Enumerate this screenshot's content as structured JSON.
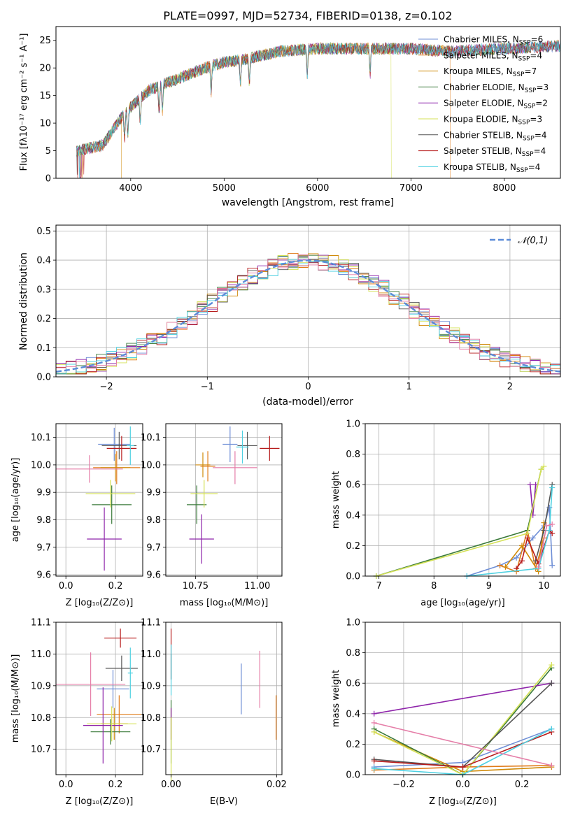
{
  "colors": [
    "#6f8fd6",
    "#e07b1a",
    "#d08a0a",
    "#3a7a3a",
    "#8e24aa",
    "#d4e157",
    "#555555",
    "#b71c1c",
    "#4dd0e1",
    "#e57ea8"
  ],
  "chart_data": [
    {
      "id": "spectrum",
      "type": "line",
      "title": "PLATE=0997, MJD=52734, FIBERID=0138, z=0.102",
      "xlabel": "wavelength [Angstrom, rest frame]",
      "ylabel": "Flux [fλ10⁻¹⁷ erg cm⁻² s⁻¹ A⁻¹]",
      "xlim": [
        3200,
        8600
      ],
      "ylim": [
        0,
        27.5
      ],
      "xticks": [
        "4000",
        "5000",
        "6000",
        "7000",
        "8000"
      ],
      "yticks": [
        "0",
        "5",
        "10",
        "15",
        "20",
        "25"
      ],
      "legend": [
        {
          "label": "Chabrier MILES, N_SSP=6",
          "color": "#6f8fd6"
        },
        {
          "label": "Salpeter MILES, N_SSP=4",
          "color": "#e07b1a"
        },
        {
          "label": "Kroupa MILES, N_SSP=7",
          "color": "#d08a0a"
        },
        {
          "label": "Chabrier ELODIE, N_SSP=3",
          "color": "#3a7a3a"
        },
        {
          "label": "Salpeter ELODIE, N_SSP=2",
          "color": "#8e24aa"
        },
        {
          "label": "Kroupa ELODIE, N_SSP=3",
          "color": "#d4e157"
        },
        {
          "label": "Chabrier STELIB, N_SSP=4",
          "color": "#555555"
        },
        {
          "label": "Salpeter STELIB, N_SSP=4",
          "color": "#b71c1c"
        },
        {
          "label": "Kroupa STELIB, N_SSP=4",
          "color": "#4dd0e1"
        }
      ],
      "legend_position": "right",
      "continuum": [
        [
          3420,
          5
        ],
        [
          3700,
          6
        ],
        [
          3900,
          11
        ],
        [
          4000,
          13
        ],
        [
          4200,
          16
        ],
        [
          4500,
          18
        ],
        [
          4800,
          20
        ],
        [
          5000,
          21
        ],
        [
          5200,
          21.5
        ],
        [
          5600,
          23
        ],
        [
          6000,
          23.5
        ],
        [
          6400,
          23.5
        ],
        [
          7000,
          23.5
        ],
        [
          7400,
          23
        ],
        [
          8000,
          23.5
        ],
        [
          8600,
          24
        ]
      ]
    },
    {
      "id": "residuals",
      "type": "step",
      "xlabel": "(data-model)/error",
      "ylabel": "Normed distribution",
      "xlim": [
        -2.5,
        2.5
      ],
      "ylim": [
        0,
        0.52
      ],
      "xticks": [
        "−2",
        "−1",
        "0",
        "1",
        "2"
      ],
      "yticks": [
        "0.0",
        "0.1",
        "0.2",
        "0.3",
        "0.4",
        "0.5"
      ],
      "legend": [
        {
          "label": "𝒩(0,1)",
          "color": "#5b8bd8"
        }
      ],
      "legend_position": "top-right",
      "grid": true
    },
    {
      "id": "age-vs-Z",
      "type": "errorbar",
      "xlabel": "Z [log₁₀(Z/Z⊙)]",
      "ylabel": "age  [log₁₀(age/yr)]",
      "xlim": [
        -0.04,
        0.31
      ],
      "ylim": [
        9.595,
        10.15
      ],
      "xticks": [
        "0.0",
        "0.2"
      ],
      "yticks": [
        "9.6",
        "9.7",
        "9.8",
        "9.9",
        "10.0",
        "10.1"
      ],
      "points": [
        {
          "x": 0.195,
          "xerr": 0.065,
          "y": 10.075,
          "yerr": 0.06,
          "color": "#6f8fd6"
        },
        {
          "x": 0.205,
          "xerr": 0.095,
          "y": 9.99,
          "yerr": 0.06,
          "color": "#e07b1a"
        },
        {
          "x": 0.2,
          "xerr": 0.06,
          "y": 9.99,
          "yerr": 0.05,
          "color": "#d08a0a"
        },
        {
          "x": 0.185,
          "xerr": 0.08,
          "y": 9.855,
          "yerr": 0.07,
          "color": "#3a7a3a"
        },
        {
          "x": 0.155,
          "xerr": 0.07,
          "y": 9.73,
          "yerr": 0.115,
          "color": "#8e24aa"
        },
        {
          "x": 0.18,
          "xerr": 0.1,
          "y": 9.895,
          "yerr": 0.05,
          "color": "#d4e157"
        },
        {
          "x": 0.215,
          "xerr": 0.07,
          "y": 10.07,
          "yerr": 0.05,
          "color": "#555555"
        },
        {
          "x": 0.225,
          "xerr": 0.06,
          "y": 10.06,
          "yerr": 0.045,
          "color": "#b71c1c"
        },
        {
          "x": 0.26,
          "xerr": 0.015,
          "y": 10.07,
          "yerr": 0.07,
          "color": "#4dd0e1"
        },
        {
          "x": 0.095,
          "xerr": 0.135,
          "y": 9.985,
          "yerr": 0.05,
          "color": "#e57ea8"
        }
      ]
    },
    {
      "id": "age-vs-mass",
      "type": "errorbar",
      "xlabel": "mass [log₁₀(M/M⊙)]",
      "ylabel": "",
      "xlim": [
        10.63,
        11.1
      ],
      "ylim": [
        9.595,
        10.15
      ],
      "xticks": [
        "10.75",
        "11.00"
      ],
      "yticks": [
        "9.6",
        "9.7",
        "9.8",
        "9.9",
        "10.0",
        "10.1"
      ],
      "points": [
        {
          "x": 10.89,
          "xerr": 0.03,
          "y": 10.075,
          "yerr": 0.065,
          "color": "#6f8fd6"
        },
        {
          "x": 10.8,
          "xerr": 0.03,
          "y": 9.995,
          "yerr": 0.055,
          "color": "#e07b1a"
        },
        {
          "x": 10.78,
          "xerr": 0.03,
          "y": 10.0,
          "yerr": 0.045,
          "color": "#d08a0a"
        },
        {
          "x": 10.755,
          "xerr": 0.04,
          "y": 9.855,
          "yerr": 0.07,
          "color": "#3a7a3a"
        },
        {
          "x": 10.775,
          "xerr": 0.05,
          "y": 9.73,
          "yerr": 0.09,
          "color": "#8e24aa"
        },
        {
          "x": 10.785,
          "xerr": 0.055,
          "y": 9.895,
          "yerr": 0.05,
          "color": "#d4e157"
        },
        {
          "x": 10.96,
          "xerr": 0.04,
          "y": 10.07,
          "yerr": 0.05,
          "color": "#555555"
        },
        {
          "x": 11.05,
          "xerr": 0.04,
          "y": 10.06,
          "yerr": 0.045,
          "color": "#b71c1c"
        },
        {
          "x": 10.94,
          "xerr": 0.025,
          "y": 10.065,
          "yerr": 0.06,
          "color": "#4dd0e1"
        },
        {
          "x": 10.91,
          "xerr": 0.09,
          "y": 9.99,
          "yerr": 0.06,
          "color": "#e57ea8"
        }
      ]
    },
    {
      "id": "weight-vs-age",
      "type": "line",
      "xlabel": "age  [log₁₀(age/yr)]",
      "ylabel": "mass weight",
      "xlim": [
        6.75,
        10.3
      ],
      "ylim": [
        0,
        1.0
      ],
      "xticks": [
        "7",
        "8",
        "9",
        "10"
      ],
      "yticks": [
        "0.0",
        "0.2",
        "0.4",
        "0.6",
        "0.8",
        "1.0"
      ],
      "series": [
        {
          "color": "#6f8fd6",
          "x": [
            8.6,
            9.2,
            9.5,
            9.8,
            10.0,
            10.1,
            10.15
          ],
          "y": [
            0.0,
            0.07,
            0.12,
            0.25,
            0.33,
            0.45,
            0.07
          ]
        },
        {
          "color": "#e07b1a",
          "x": [
            9.2,
            9.5,
            9.7,
            9.85,
            10.0
          ],
          "y": [
            0.07,
            0.03,
            0.3,
            0.05,
            0.25
          ]
        },
        {
          "color": "#d08a0a",
          "x": [
            9.3,
            9.6,
            9.9,
            10.0
          ],
          "y": [
            0.06,
            0.2,
            0.03,
            0.35
          ]
        },
        {
          "color": "#3a7a3a",
          "x": [
            6.95,
            9.7,
            9.95
          ],
          "y": [
            0.0,
            0.3,
            0.7
          ]
        },
        {
          "color": "#8e24aa",
          "x": [
            9.75,
            9.8,
            9.85
          ],
          "y": [
            0.6,
            0.4,
            0.6
          ]
        },
        {
          "color": "#d4e157",
          "x": [
            6.95,
            9.7,
            9.95,
            10.0
          ],
          "y": [
            0.0,
            0.28,
            0.7,
            0.72
          ]
        },
        {
          "color": "#555555",
          "x": [
            9.85,
            10.0,
            10.15
          ],
          "y": [
            0.1,
            0.3,
            0.6
          ]
        },
        {
          "color": "#b71c1c",
          "x": [
            9.5,
            9.6,
            9.7,
            9.9,
            10.1,
            10.15
          ],
          "y": [
            0.05,
            0.1,
            0.25,
            0.08,
            0.3,
            0.28
          ]
        },
        {
          "color": "#4dd0e1",
          "x": [
            8.6,
            9.9,
            10.1,
            10.15
          ],
          "y": [
            0.0,
            0.05,
            0.3,
            0.58
          ]
        },
        {
          "color": "#e57ea8",
          "x": [
            9.9,
            10.05,
            10.15
          ],
          "y": [
            0.06,
            0.33,
            0.34
          ]
        }
      ]
    },
    {
      "id": "mass-vs-Z",
      "type": "errorbar",
      "xlabel": "Z [log₁₀(Z/Z⊙)]",
      "ylabel": "mass [log₁₀(M/M⊙)]",
      "xlim": [
        -0.04,
        0.31
      ],
      "ylim": [
        10.62,
        11.1
      ],
      "xticks": [
        "0.0",
        "0.2"
      ],
      "yticks": [
        "10.7",
        "10.8",
        "10.9",
        "11.0",
        "11.1"
      ],
      "points": [
        {
          "x": 0.19,
          "xerr": 0.065,
          "y": 10.89,
          "yerr": 0.06,
          "color": "#6f8fd6"
        },
        {
          "x": 0.215,
          "xerr": 0.09,
          "y": 10.81,
          "yerr": 0.06,
          "color": "#e07b1a"
        },
        {
          "x": 0.195,
          "xerr": 0.055,
          "y": 10.78,
          "yerr": 0.05,
          "color": "#d08a0a"
        },
        {
          "x": 0.18,
          "xerr": 0.08,
          "y": 10.755,
          "yerr": 0.04,
          "color": "#3a7a3a"
        },
        {
          "x": 0.15,
          "xerr": 0.08,
          "y": 10.775,
          "yerr": 0.12,
          "color": "#8e24aa"
        },
        {
          "x": 0.185,
          "xerr": 0.1,
          "y": 10.78,
          "yerr": 0.055,
          "color": "#d4e157"
        },
        {
          "x": 0.225,
          "xerr": 0.065,
          "y": 10.955,
          "yerr": 0.04,
          "color": "#555555"
        },
        {
          "x": 0.22,
          "xerr": 0.065,
          "y": 11.05,
          "yerr": 0.03,
          "color": "#b71c1c"
        },
        {
          "x": 0.26,
          "xerr": 0.01,
          "y": 10.94,
          "yerr": 0.08,
          "color": "#4dd0e1"
        },
        {
          "x": 0.1,
          "xerr": 0.14,
          "y": 10.905,
          "yerr": 0.1,
          "color": "#e57ea8"
        }
      ]
    },
    {
      "id": "mass-vs-ebv",
      "type": "errorbar",
      "xlabel": "E(B-V)",
      "ylabel": "",
      "xlim": [
        -0.001,
        0.021
      ],
      "ylim": [
        10.62,
        11.1
      ],
      "xticks": [
        "0.00",
        "0.02"
      ],
      "yticks": [
        "10.7",
        "10.8",
        "10.9",
        "11.0",
        "11.1"
      ],
      "points": [
        {
          "x": 0.0133,
          "xerr": 0,
          "y": 10.89,
          "yerr": 0.08,
          "color": "#6f8fd6"
        },
        {
          "x": 0.0199,
          "xerr": 0,
          "y": 10.8,
          "yerr": 0.07,
          "color": "#e07b1a"
        },
        {
          "x": 0.0,
          "xerr": 0,
          "y": 10.78,
          "yerr": 0.05,
          "color": "#d08a0a"
        },
        {
          "x": 0.0,
          "xerr": 0,
          "y": 10.755,
          "yerr": 0.1,
          "color": "#3a7a3a"
        },
        {
          "x": 0.0,
          "xerr": 0,
          "y": 10.78,
          "yerr": 0.05,
          "color": "#8e24aa"
        },
        {
          "x": 0.0,
          "xerr": 0,
          "y": 10.7,
          "yerr": 0.1,
          "color": "#d4e157"
        },
        {
          "x": 0.0,
          "xerr": 0,
          "y": 10.96,
          "yerr": 0.04,
          "color": "#555555"
        },
        {
          "x": 0.0,
          "xerr": 0,
          "y": 11.0,
          "yerr": 0.08,
          "color": "#b71c1c"
        },
        {
          "x": 0.0,
          "xerr": 0,
          "y": 10.95,
          "yerr": 0.08,
          "color": "#4dd0e1"
        },
        {
          "x": 0.0168,
          "xerr": 0,
          "y": 10.92,
          "yerr": 0.09,
          "color": "#e57ea8"
        }
      ]
    },
    {
      "id": "weight-vs-Z",
      "type": "line",
      "xlabel": "Z [log₁₀(Z/Z⊙)]",
      "ylabel": "mass weight",
      "xlim": [
        -0.33,
        0.33
      ],
      "ylim": [
        0,
        1.0
      ],
      "xticks": [
        "−0.2",
        "0.0",
        "0.2"
      ],
      "yticks": [
        "0.0",
        "0.2",
        "0.4",
        "0.6",
        "0.8",
        "1.0"
      ],
      "series": [
        {
          "color": "#6f8fd6",
          "x": [
            -0.3,
            0.0,
            0.3
          ],
          "y": [
            0.05,
            0.08,
            0.3
          ]
        },
        {
          "color": "#e07b1a",
          "x": [
            -0.3,
            0.0,
            0.3
          ],
          "y": [
            0.03,
            0.05,
            0.06
          ]
        },
        {
          "color": "#d08a0a",
          "x": [
            -0.3,
            0.0,
            0.3
          ],
          "y": [
            0.28,
            0.02,
            0.05
          ]
        },
        {
          "color": "#3a7a3a",
          "x": [
            -0.3,
            0.0,
            0.3
          ],
          "y": [
            0.3,
            0.0,
            0.7
          ]
        },
        {
          "color": "#8e24aa",
          "x": [
            -0.3,
            0.3
          ],
          "y": [
            0.4,
            0.6
          ]
        },
        {
          "color": "#d4e157",
          "x": [
            -0.3,
            0.0,
            0.3
          ],
          "y": [
            0.28,
            0.0,
            0.72
          ]
        },
        {
          "color": "#555555",
          "x": [
            -0.3,
            0.0,
            0.3
          ],
          "y": [
            0.1,
            0.05,
            0.6
          ]
        },
        {
          "color": "#b71c1c",
          "x": [
            -0.3,
            0.0,
            0.3
          ],
          "y": [
            0.09,
            0.05,
            0.28
          ]
        },
        {
          "color": "#4dd0e1",
          "x": [
            -0.3,
            0.0,
            0.3
          ],
          "y": [
            0.04,
            0.0,
            0.3
          ]
        },
        {
          "color": "#e57ea8",
          "x": [
            -0.3,
            0.3
          ],
          "y": [
            0.34,
            0.06
          ]
        }
      ]
    }
  ]
}
